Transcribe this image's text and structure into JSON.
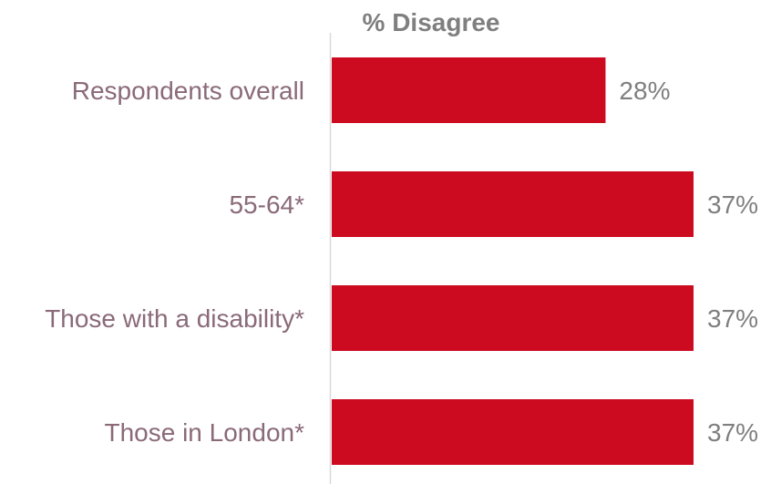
{
  "chart_data": {
    "type": "bar",
    "orientation": "horizontal",
    "title": "% Disagree",
    "categories": [
      "Respondents overall",
      "55-64*",
      "Those with a disability*",
      "Those in London*"
    ],
    "values": [
      28,
      37,
      37,
      37
    ],
    "value_labels": [
      "28%",
      "37%",
      "37%",
      "37%"
    ],
    "xlim": [
      0,
      37
    ],
    "grid": false,
    "bar_color": "#cc0a20",
    "label_color": "#8a6a78",
    "value_color": "#7f7f7f",
    "axis_color": "#d9d9d9"
  }
}
